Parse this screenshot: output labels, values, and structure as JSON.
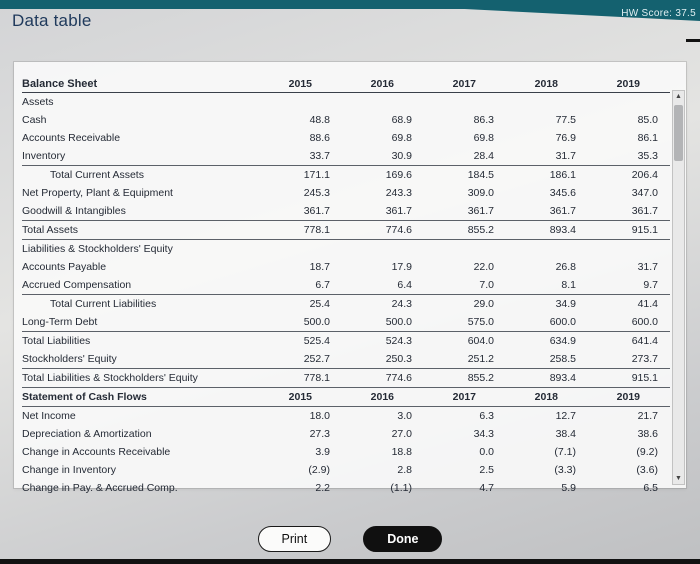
{
  "chrome": {
    "title": "Data table",
    "score_text": "HW Score: 37.5",
    "minimize_glyph": "-"
  },
  "table": {
    "title": "Balance Sheet",
    "years": [
      "2015",
      "2016",
      "2017",
      "2018",
      "2019"
    ],
    "rows": [
      {
        "label": "Assets",
        "style": "section",
        "values": []
      },
      {
        "label": "Cash",
        "style": "item",
        "values": [
          "48.8",
          "68.9",
          "86.3",
          "77.5",
          "85.0"
        ]
      },
      {
        "label": "Accounts Receivable",
        "style": "item",
        "values": [
          "88.6",
          "69.8",
          "69.8",
          "76.9",
          "86.1"
        ]
      },
      {
        "label": "Inventory",
        "style": "item",
        "rule": true,
        "values": [
          "33.7",
          "30.9",
          "28.4",
          "31.7",
          "35.3"
        ]
      },
      {
        "label": "Total Current Assets",
        "style": "item indent",
        "values": [
          "171.1",
          "169.6",
          "184.5",
          "186.1",
          "206.4"
        ]
      },
      {
        "label": "Net Property, Plant & Equipment",
        "style": "item",
        "values": [
          "245.3",
          "243.3",
          "309.0",
          "345.6",
          "347.0"
        ]
      },
      {
        "label": "Goodwill & Intangibles",
        "style": "item",
        "rule": true,
        "values": [
          "361.7",
          "361.7",
          "361.7",
          "361.7",
          "361.7"
        ]
      },
      {
        "label": "Total Assets",
        "style": "item",
        "rule": true,
        "values": [
          "778.1",
          "774.6",
          "855.2",
          "893.4",
          "915.1"
        ]
      },
      {
        "label": "Liabilities & Stockholders' Equity",
        "style": "section",
        "values": []
      },
      {
        "label": "Accounts Payable",
        "style": "item",
        "values": [
          "18.7",
          "17.9",
          "22.0",
          "26.8",
          "31.7"
        ]
      },
      {
        "label": "Accrued Compensation",
        "style": "item",
        "rule": true,
        "values": [
          "6.7",
          "6.4",
          "7.0",
          "8.1",
          "9.7"
        ]
      },
      {
        "label": "Total Current Liabilities",
        "style": "item indent",
        "values": [
          "25.4",
          "24.3",
          "29.0",
          "34.9",
          "41.4"
        ]
      },
      {
        "label": "Long-Term Debt",
        "style": "item",
        "rule": true,
        "values": [
          "500.0",
          "500.0",
          "575.0",
          "600.0",
          "600.0"
        ]
      },
      {
        "label": "Total Liabilities",
        "style": "item",
        "values": [
          "525.4",
          "524.3",
          "604.0",
          "634.9",
          "641.4"
        ]
      },
      {
        "label": "Stockholders' Equity",
        "style": "item",
        "rule": true,
        "values": [
          "252.7",
          "250.3",
          "251.2",
          "258.5",
          "273.7"
        ]
      },
      {
        "label": "Total Liabilities & Stockholders' Equity",
        "style": "item",
        "rule": true,
        "values": [
          "778.1",
          "774.6",
          "855.2",
          "893.4",
          "915.1"
        ]
      },
      {
        "label": "Statement of Cash Flows",
        "style": "cfheader",
        "rule": true,
        "values": [
          "2015",
          "2016",
          "2017",
          "2018",
          "2019"
        ]
      },
      {
        "label": "Net Income",
        "style": "item",
        "values": [
          "18.0",
          "3.0",
          "6.3",
          "12.7",
          "21.7"
        ]
      },
      {
        "label": "Depreciation & Amortization",
        "style": "item",
        "values": [
          "27.3",
          "27.0",
          "34.3",
          "38.4",
          "38.6"
        ]
      },
      {
        "label": "Change in Accounts Receivable",
        "style": "item",
        "values": [
          "3.9",
          "18.8",
          "0.0",
          "(7.1)",
          "(9.2)"
        ]
      },
      {
        "label": "Change in Inventory",
        "style": "item",
        "values": [
          "(2.9)",
          "2.8",
          "2.5",
          "(3.3)",
          "(3.6)"
        ]
      },
      {
        "label": "Change in Pay. & Accrued Comp.",
        "style": "item",
        "values": [
          "2.2",
          "(1.1)",
          "4.7",
          "5.9",
          "6.5"
        ]
      }
    ]
  },
  "scrollbar": {
    "up": "▲",
    "down": "▼"
  },
  "footer": {
    "print_label": "Print",
    "done_label": "Done"
  },
  "colors": {
    "topbar": "#14616f",
    "title_text": "#203a5c",
    "done_button": "#101010"
  }
}
